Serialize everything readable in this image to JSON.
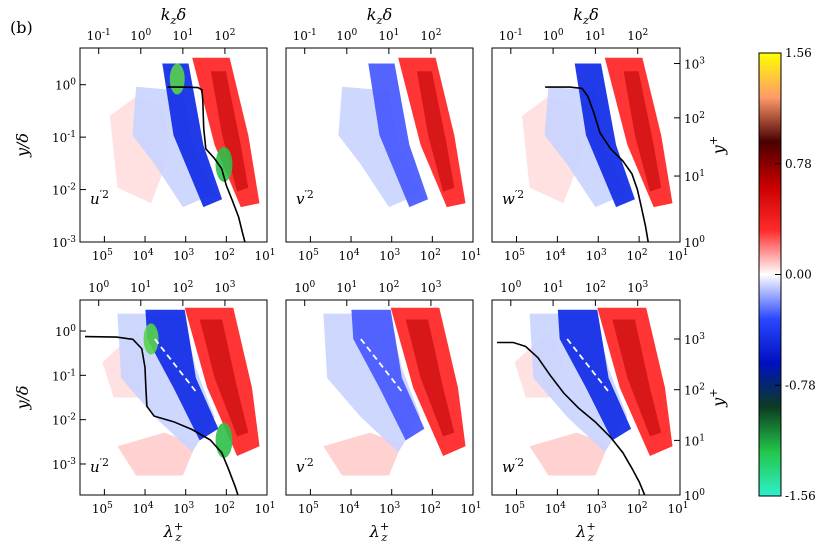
{
  "panel_label": "(b)",
  "colorbar": {
    "ticks": [
      "1.56",
      "0.78",
      "0.00",
      "-0.78",
      "-1.56"
    ],
    "values": [
      1.56,
      0.78,
      0.0,
      -0.78,
      -1.56
    ],
    "min": -1.56,
    "max": 1.56,
    "stops": [
      "#2ef0cc",
      "#23c64a",
      "#0c3d20",
      "#0010c0",
      "#2a48ff",
      "#ffffff",
      "#ff2a2a",
      "#c80000",
      "#4a0000",
      "#ff9a6a",
      "#ffff00"
    ]
  },
  "chart_data": [
    {
      "type": "heatmap",
      "id": "top-u",
      "title": "u'2",
      "top_axis_label": "k_z δ",
      "top_ticks": [
        "10^{-1}",
        "10^{0}",
        "10^{1}",
        "10^{2}"
      ],
      "top_tick_values": [
        0.1,
        1,
        10,
        100
      ],
      "bottom_ticks": [
        "10^{5}",
        "10^{4}",
        "10^{3}",
        "10^{2}",
        "10^{1}"
      ],
      "bottom_tick_values": [
        100000,
        10000,
        1000,
        100,
        10
      ],
      "left_axis_label": "y/δ",
      "left_ticks": [
        "10^{0}",
        "10^{-1}",
        "10^{-2}",
        "10^{-3}"
      ],
      "left_tick_values": [
        1,
        0.1,
        0.01,
        0.001
      ],
      "annotation": "u'2",
      "line": [
        [
          2800,
          0.9
        ],
        [
          1200,
          0.9
        ],
        [
          500,
          0.88
        ],
        [
          400,
          0.8
        ],
        [
          380,
          0.5
        ],
        [
          360,
          0.15
        ],
        [
          320,
          0.06
        ],
        [
          200,
          0.04
        ],
        [
          130,
          0.025
        ],
        [
          100,
          0.012
        ],
        [
          70,
          0.006
        ],
        [
          50,
          0.003
        ],
        [
          40,
          0.0015
        ],
        [
          35,
          0.001
        ]
      ]
    },
    {
      "type": "heatmap",
      "id": "top-v",
      "title": "v'2",
      "top_axis_label": "k_z δ",
      "top_ticks": [
        "10^{-1}",
        "10^{0}",
        "10^{1}",
        "10^{2}"
      ],
      "top_tick_values": [
        0.1,
        1,
        10,
        100
      ],
      "bottom_ticks": [
        "10^{5}",
        "10^{4}",
        "10^{3}",
        "10^{2}",
        "10^{1}"
      ],
      "bottom_tick_values": [
        100000,
        10000,
        1000,
        100,
        10
      ],
      "annotation": "v'2"
    },
    {
      "type": "heatmap",
      "id": "top-w",
      "title": "w'2",
      "top_axis_label": "k_z δ",
      "top_ticks": [
        "10^{-1}",
        "10^{0}",
        "10^{1}",
        "10^{2}"
      ],
      "top_tick_values": [
        0.1,
        1,
        10,
        100
      ],
      "bottom_ticks": [
        "10^{5}",
        "10^{4}",
        "10^{3}",
        "10^{2}",
        "10^{1}"
      ],
      "bottom_tick_values": [
        100000,
        10000,
        1000,
        100,
        10
      ],
      "right_axis_label": "y^+",
      "right_ticks": [
        "10^{3}",
        "10^{2}",
        "10^{1}",
        "10^{0}"
      ],
      "right_tick_values": [
        1000,
        100,
        10,
        1
      ],
      "annotation": "w'2",
      "line": [
        [
          20000,
          0.9
        ],
        [
          5000,
          0.9
        ],
        [
          2500,
          0.85
        ],
        [
          1800,
          0.6
        ],
        [
          1300,
          0.3
        ],
        [
          900,
          0.12
        ],
        [
          500,
          0.06
        ],
        [
          250,
          0.035
        ],
        [
          150,
          0.02
        ],
        [
          110,
          0.01
        ],
        [
          90,
          0.005
        ],
        [
          70,
          0.002
        ],
        [
          60,
          0.001
        ]
      ]
    },
    {
      "type": "heatmap",
      "id": "bottom-u",
      "title": "u'2",
      "top_ticks": [
        "10^{0}",
        "10^{1}",
        "10^{2}",
        "10^{3}"
      ],
      "top_tick_values": [
        1,
        10,
        100,
        1000
      ],
      "bottom_ticks": [
        "10^{5}",
        "10^{4}",
        "10^{3}",
        "10^{2}",
        "10^{1}"
      ],
      "bottom_tick_values": [
        100000,
        10000,
        1000,
        100,
        10
      ],
      "xlabel": "λ_z^+",
      "left_axis_label": "y/δ",
      "left_ticks": [
        "10^{0}",
        "10^{-1}",
        "10^{-2}",
        "10^{-3}"
      ],
      "left_tick_values": [
        1,
        0.1,
        0.01,
        0.001
      ],
      "annotation": "u'2",
      "line": [
        [
          300000,
          0.75
        ],
        [
          50000,
          0.73
        ],
        [
          20000,
          0.65
        ],
        [
          12000,
          0.4
        ],
        [
          10000,
          0.15
        ],
        [
          9500,
          0.05
        ],
        [
          9000,
          0.02
        ],
        [
          6000,
          0.012
        ],
        [
          2000,
          0.009
        ],
        [
          700,
          0.006
        ],
        [
          250,
          0.0035
        ],
        [
          130,
          0.0018
        ],
        [
          90,
          0.0008
        ],
        [
          60,
          0.0003
        ],
        [
          50,
          0.00018
        ]
      ]
    },
    {
      "type": "heatmap",
      "id": "bottom-v",
      "title": "v'2",
      "top_ticks": [
        "10^{0}",
        "10^{1}",
        "10^{2}",
        "10^{3}"
      ],
      "top_tick_values": [
        1,
        10,
        100,
        1000
      ],
      "bottom_ticks": [
        "10^{5}",
        "10^{4}",
        "10^{3}",
        "10^{2}",
        "10^{1}"
      ],
      "bottom_tick_values": [
        100000,
        10000,
        1000,
        100,
        10
      ],
      "xlabel": "λ_z^+",
      "annotation": "v'2"
    },
    {
      "type": "heatmap",
      "id": "bottom-w",
      "title": "w'2",
      "top_ticks": [
        "10^{0}",
        "10^{1}",
        "10^{2}",
        "10^{3}"
      ],
      "top_tick_values": [
        1,
        10,
        100,
        1000
      ],
      "bottom_ticks": [
        "10^{5}",
        "10^{4}",
        "10^{3}",
        "10^{2}",
        "10^{1}"
      ],
      "bottom_tick_values": [
        100000,
        10000,
        1000,
        100,
        10
      ],
      "xlabel": "λ_z^+",
      "right_axis_label": "y^+",
      "right_ticks": [
        "10^{3}",
        "10^{2}",
        "10^{1}",
        "10^{0}"
      ],
      "right_tick_values": [
        1000,
        100,
        10,
        1
      ],
      "annotation": "w'2",
      "line": [
        [
          300000,
          0.55
        ],
        [
          120000,
          0.55
        ],
        [
          60000,
          0.45
        ],
        [
          30000,
          0.25
        ],
        [
          15000,
          0.1
        ],
        [
          7000,
          0.04
        ],
        [
          3000,
          0.018
        ],
        [
          1200,
          0.009
        ],
        [
          500,
          0.004
        ],
        [
          250,
          0.0018
        ],
        [
          150,
          0.0008
        ],
        [
          100,
          0.0004
        ],
        [
          70,
          0.00018
        ]
      ]
    }
  ]
}
